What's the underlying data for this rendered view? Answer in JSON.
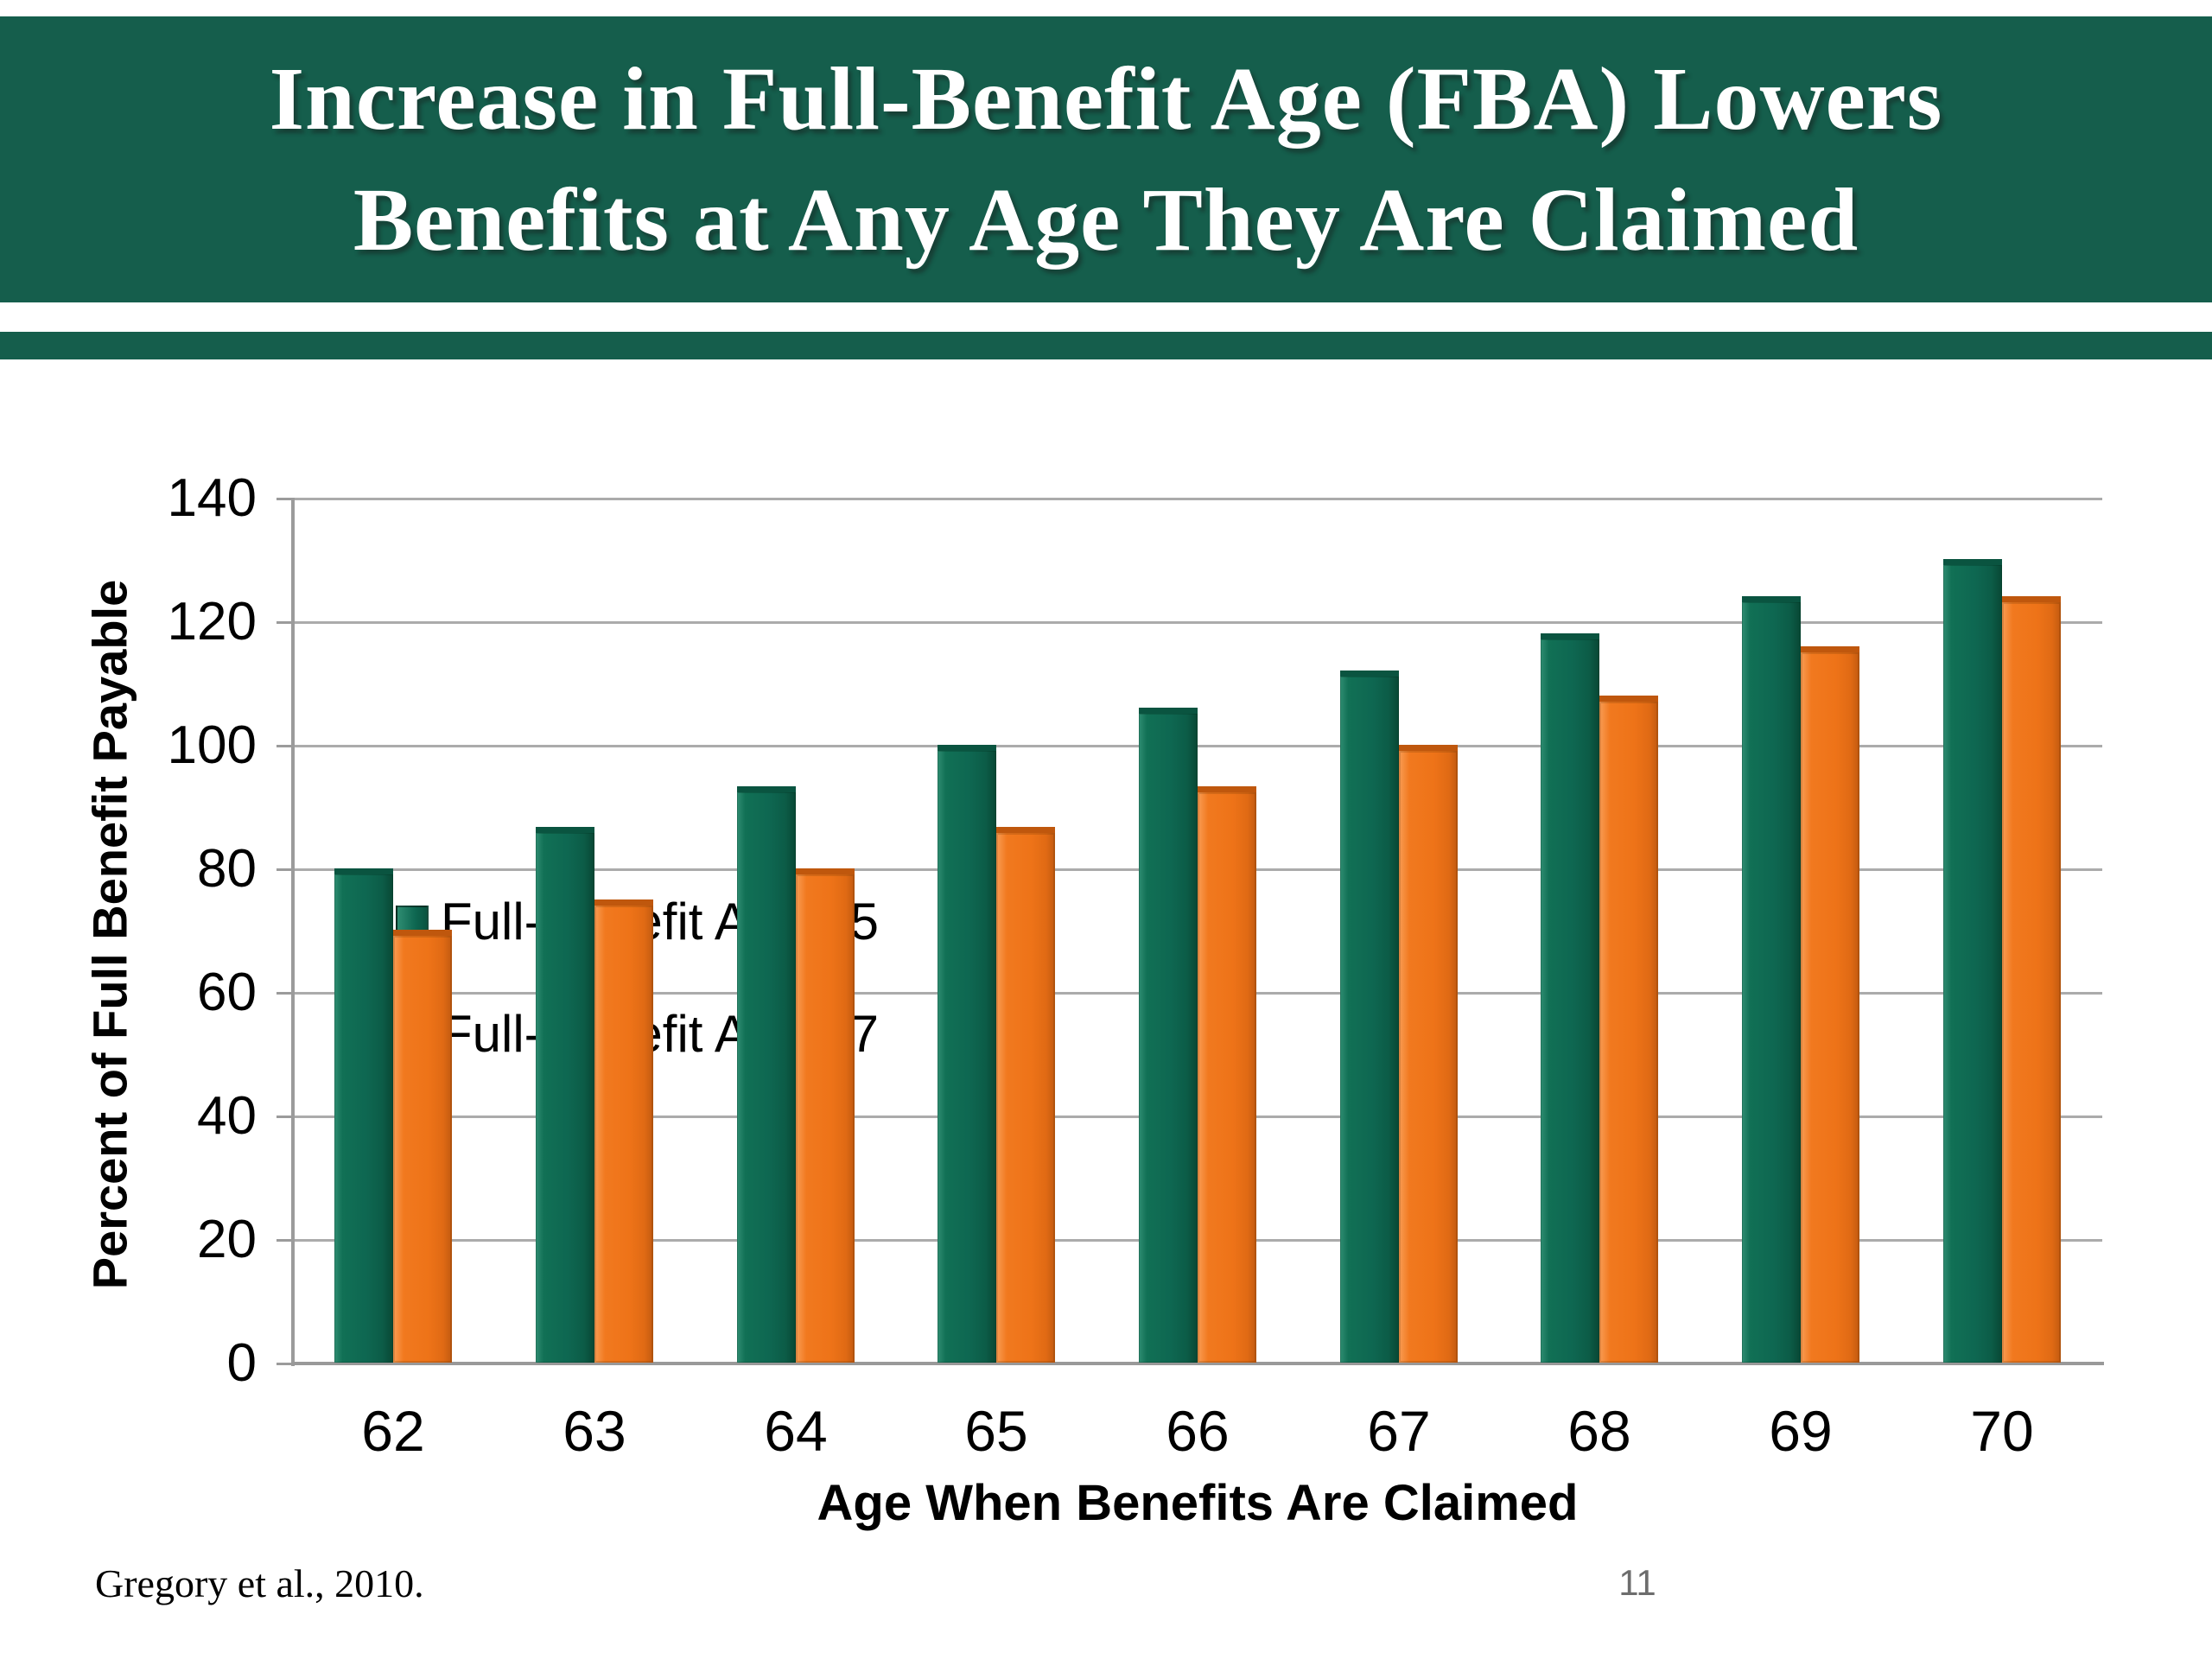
{
  "slide": {
    "title_line1": "Increase in Full-Benefit Age (FBA) Lowers",
    "title_line2": "Benefits at Any Age They Are Claimed",
    "footer_citation": "Gregory et al., 2010.",
    "page_number": "11"
  },
  "colors": {
    "header_green": "#155E4C",
    "series_green": "#0E6751",
    "series_orange": "#EE7318",
    "gridline_gray": "#ABABAB",
    "page_number_gray": "#6D6D6D",
    "title_white": "#FFFFFF"
  },
  "chart_data": {
    "type": "bar",
    "title": "",
    "categories": [
      "62",
      "63",
      "64",
      "65",
      "66",
      "67",
      "68",
      "69",
      "70"
    ],
    "series": [
      {
        "name": "Full-Benefit Age 65",
        "color": "#0E6751",
        "values": [
          80,
          86.7,
          93.3,
          100,
          106,
          112,
          118,
          124,
          130
        ]
      },
      {
        "name": "Full-Benefit Age 67",
        "color": "#EE7318",
        "values": [
          70,
          75,
          80,
          86.7,
          93.3,
          100,
          108,
          116,
          124
        ]
      }
    ],
    "xlabel": "Age When Benefits Are Claimed",
    "ylabel": "Percent of Full Benefit Payable",
    "ylim": [
      0,
      140
    ],
    "ytick_step": 20,
    "grid": true,
    "legend_position": "upper-left-inside"
  }
}
